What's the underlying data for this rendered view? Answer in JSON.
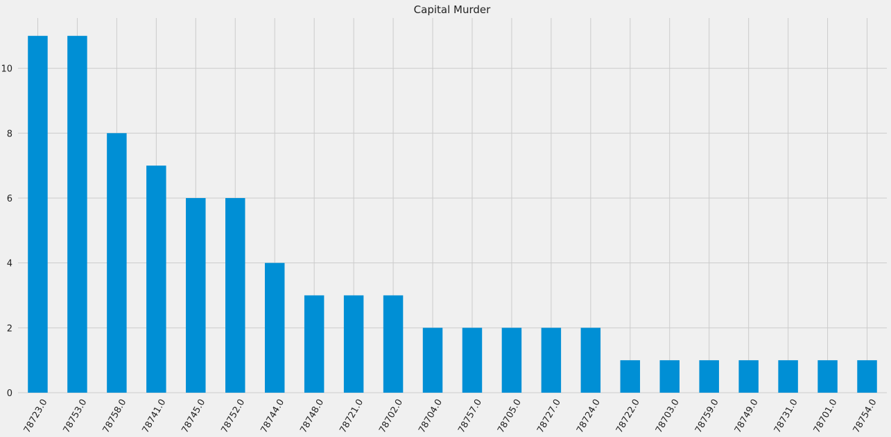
{
  "chart_data": {
    "type": "bar",
    "title": "Capital Murder",
    "xlabel": "",
    "ylabel": "",
    "categories": [
      "78723.0",
      "78753.0",
      "78758.0",
      "78741.0",
      "78745.0",
      "78752.0",
      "78744.0",
      "78748.0",
      "78721.0",
      "78702.0",
      "78704.0",
      "78757.0",
      "78705.0",
      "78727.0",
      "78724.0",
      "78722.0",
      "78703.0",
      "78759.0",
      "78749.0",
      "78731.0",
      "78701.0",
      "78754.0"
    ],
    "values": [
      11,
      11,
      8,
      7,
      6,
      6,
      4,
      3,
      3,
      3,
      2,
      2,
      2,
      2,
      2,
      1,
      1,
      1,
      1,
      1,
      1,
      1
    ],
    "yticks": [
      0,
      2,
      4,
      6,
      8,
      10
    ],
    "ylim": [
      0,
      11.55
    ],
    "grid": true,
    "legend": "none",
    "colors": {
      "bar": "#008fd5",
      "background": "#f0f0f0",
      "grid": "#cbcbcb",
      "text": "#222222"
    }
  }
}
